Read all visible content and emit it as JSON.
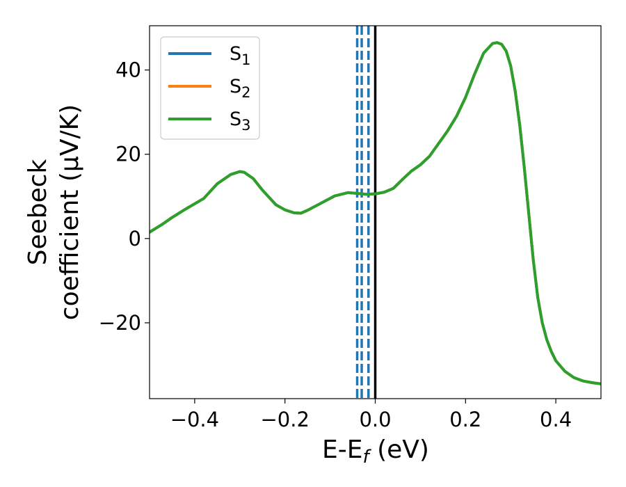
{
  "chart_data": {
    "type": "line",
    "title": "",
    "xlabel": "E-E_f (eV)",
    "ylabel": "Seebeck coefficient (μV/K)",
    "xlim": [
      -0.5,
      0.5
    ],
    "ylim": [
      -38,
      50.5
    ],
    "xticks": [
      -0.4,
      -0.2,
      0.0,
      0.2,
      0.4
    ],
    "xtick_labels": [
      "−0.4",
      "−0.2",
      "0.0",
      "0.2",
      "0.4"
    ],
    "yticks": [
      -20,
      0,
      20,
      40
    ],
    "ytick_labels": [
      "−20",
      "0",
      "20",
      "40"
    ],
    "grid": false,
    "legend_position": "top-left",
    "series": [
      {
        "name": "S_1",
        "color": "#1f77b4",
        "x": [
          -0.5,
          -0.47,
          -0.45,
          -0.42,
          -0.38,
          -0.35,
          -0.32,
          -0.3,
          -0.29,
          -0.27,
          -0.25,
          -0.22,
          -0.2,
          -0.18,
          -0.165,
          -0.15,
          -0.12,
          -0.09,
          -0.06,
          -0.04,
          -0.02,
          0.0,
          0.02,
          0.04,
          0.06,
          0.08,
          0.1,
          0.12,
          0.14,
          0.16,
          0.18,
          0.2,
          0.22,
          0.24,
          0.26,
          0.27,
          0.28,
          0.29,
          0.3,
          0.31,
          0.32,
          0.33,
          0.34,
          0.35,
          0.36,
          0.37,
          0.38,
          0.39,
          0.4,
          0.42,
          0.44,
          0.46,
          0.48,
          0.5
        ],
        "values": [
          1.5,
          3.5,
          5,
          7,
          9.5,
          13,
          15.2,
          15.9,
          15.7,
          14.2,
          11.5,
          8,
          6.8,
          6.1,
          6.0,
          6.7,
          8.4,
          10.1,
          10.9,
          10.7,
          10.5,
          10.6,
          11.0,
          11.9,
          14.0,
          16.0,
          17.5,
          19.5,
          22.5,
          25.5,
          29.0,
          33.5,
          39.0,
          44.0,
          46.3,
          46.5,
          46.1,
          44.5,
          41.0,
          35.0,
          27.0,
          17.0,
          6.0,
          -5.0,
          -14.0,
          -20.0,
          -24.0,
          -26.8,
          -29.0,
          -31.5,
          -33.0,
          -33.8,
          -34.2,
          -34.5
        ]
      },
      {
        "name": "S_2",
        "color": "#ff7f0e",
        "x": [
          -0.5,
          -0.47,
          -0.45,
          -0.42,
          -0.38,
          -0.35,
          -0.32,
          -0.3,
          -0.29,
          -0.27,
          -0.25,
          -0.22,
          -0.2,
          -0.18,
          -0.165,
          -0.15,
          -0.12,
          -0.09,
          -0.06,
          -0.04,
          -0.02,
          0.0,
          0.02,
          0.04,
          0.06,
          0.08,
          0.1,
          0.12,
          0.14,
          0.16,
          0.18,
          0.2,
          0.22,
          0.24,
          0.26,
          0.27,
          0.28,
          0.29,
          0.3,
          0.31,
          0.32,
          0.33,
          0.34,
          0.35,
          0.36,
          0.37,
          0.38,
          0.39,
          0.4,
          0.42,
          0.44,
          0.46,
          0.48,
          0.5
        ],
        "values": [
          1.5,
          3.5,
          5,
          7,
          9.5,
          13,
          15.2,
          15.9,
          15.7,
          14.2,
          11.5,
          8,
          6.8,
          6.1,
          6.0,
          6.7,
          8.4,
          10.1,
          10.9,
          10.7,
          10.5,
          10.6,
          11.0,
          11.9,
          14.0,
          16.0,
          17.5,
          19.5,
          22.5,
          25.5,
          29.0,
          33.5,
          39.0,
          44.0,
          46.3,
          46.5,
          46.1,
          44.5,
          41.0,
          35.0,
          27.0,
          17.0,
          6.0,
          -5.0,
          -14.0,
          -20.0,
          -24.0,
          -26.8,
          -29.0,
          -31.5,
          -33.0,
          -33.8,
          -34.2,
          -34.5
        ]
      },
      {
        "name": "S_3",
        "color": "#2ca02c",
        "x": [
          -0.5,
          -0.47,
          -0.45,
          -0.42,
          -0.38,
          -0.35,
          -0.32,
          -0.3,
          -0.29,
          -0.27,
          -0.25,
          -0.22,
          -0.2,
          -0.18,
          -0.165,
          -0.15,
          -0.12,
          -0.09,
          -0.06,
          -0.04,
          -0.02,
          0.0,
          0.02,
          0.04,
          0.06,
          0.08,
          0.1,
          0.12,
          0.14,
          0.16,
          0.18,
          0.2,
          0.22,
          0.24,
          0.26,
          0.27,
          0.28,
          0.29,
          0.3,
          0.31,
          0.32,
          0.33,
          0.34,
          0.35,
          0.36,
          0.37,
          0.38,
          0.39,
          0.4,
          0.42,
          0.44,
          0.46,
          0.48,
          0.5
        ],
        "values": [
          1.5,
          3.5,
          5,
          7,
          9.5,
          13,
          15.2,
          15.9,
          15.7,
          14.2,
          11.5,
          8,
          6.8,
          6.1,
          6.0,
          6.7,
          8.4,
          10.1,
          10.9,
          10.7,
          10.5,
          10.6,
          11.0,
          11.9,
          14.0,
          16.0,
          17.5,
          19.5,
          22.5,
          25.5,
          29.0,
          33.5,
          39.0,
          44.0,
          46.3,
          46.5,
          46.1,
          44.5,
          41.0,
          35.0,
          27.0,
          17.0,
          6.0,
          -5.0,
          -14.0,
          -20.0,
          -24.0,
          -26.8,
          -29.0,
          -31.5,
          -33.0,
          -33.8,
          -34.2,
          -34.5
        ]
      }
    ],
    "reference_lines": [
      {
        "x": -0.04,
        "style": "dashed",
        "color": "#1f77b4"
      },
      {
        "x": -0.03,
        "style": "dashed",
        "color": "#1f77b4"
      },
      {
        "x": -0.015,
        "style": "dashed",
        "color": "#1f77b4"
      },
      {
        "x": 0.0,
        "style": "solid",
        "color": "#000000"
      }
    ]
  }
}
